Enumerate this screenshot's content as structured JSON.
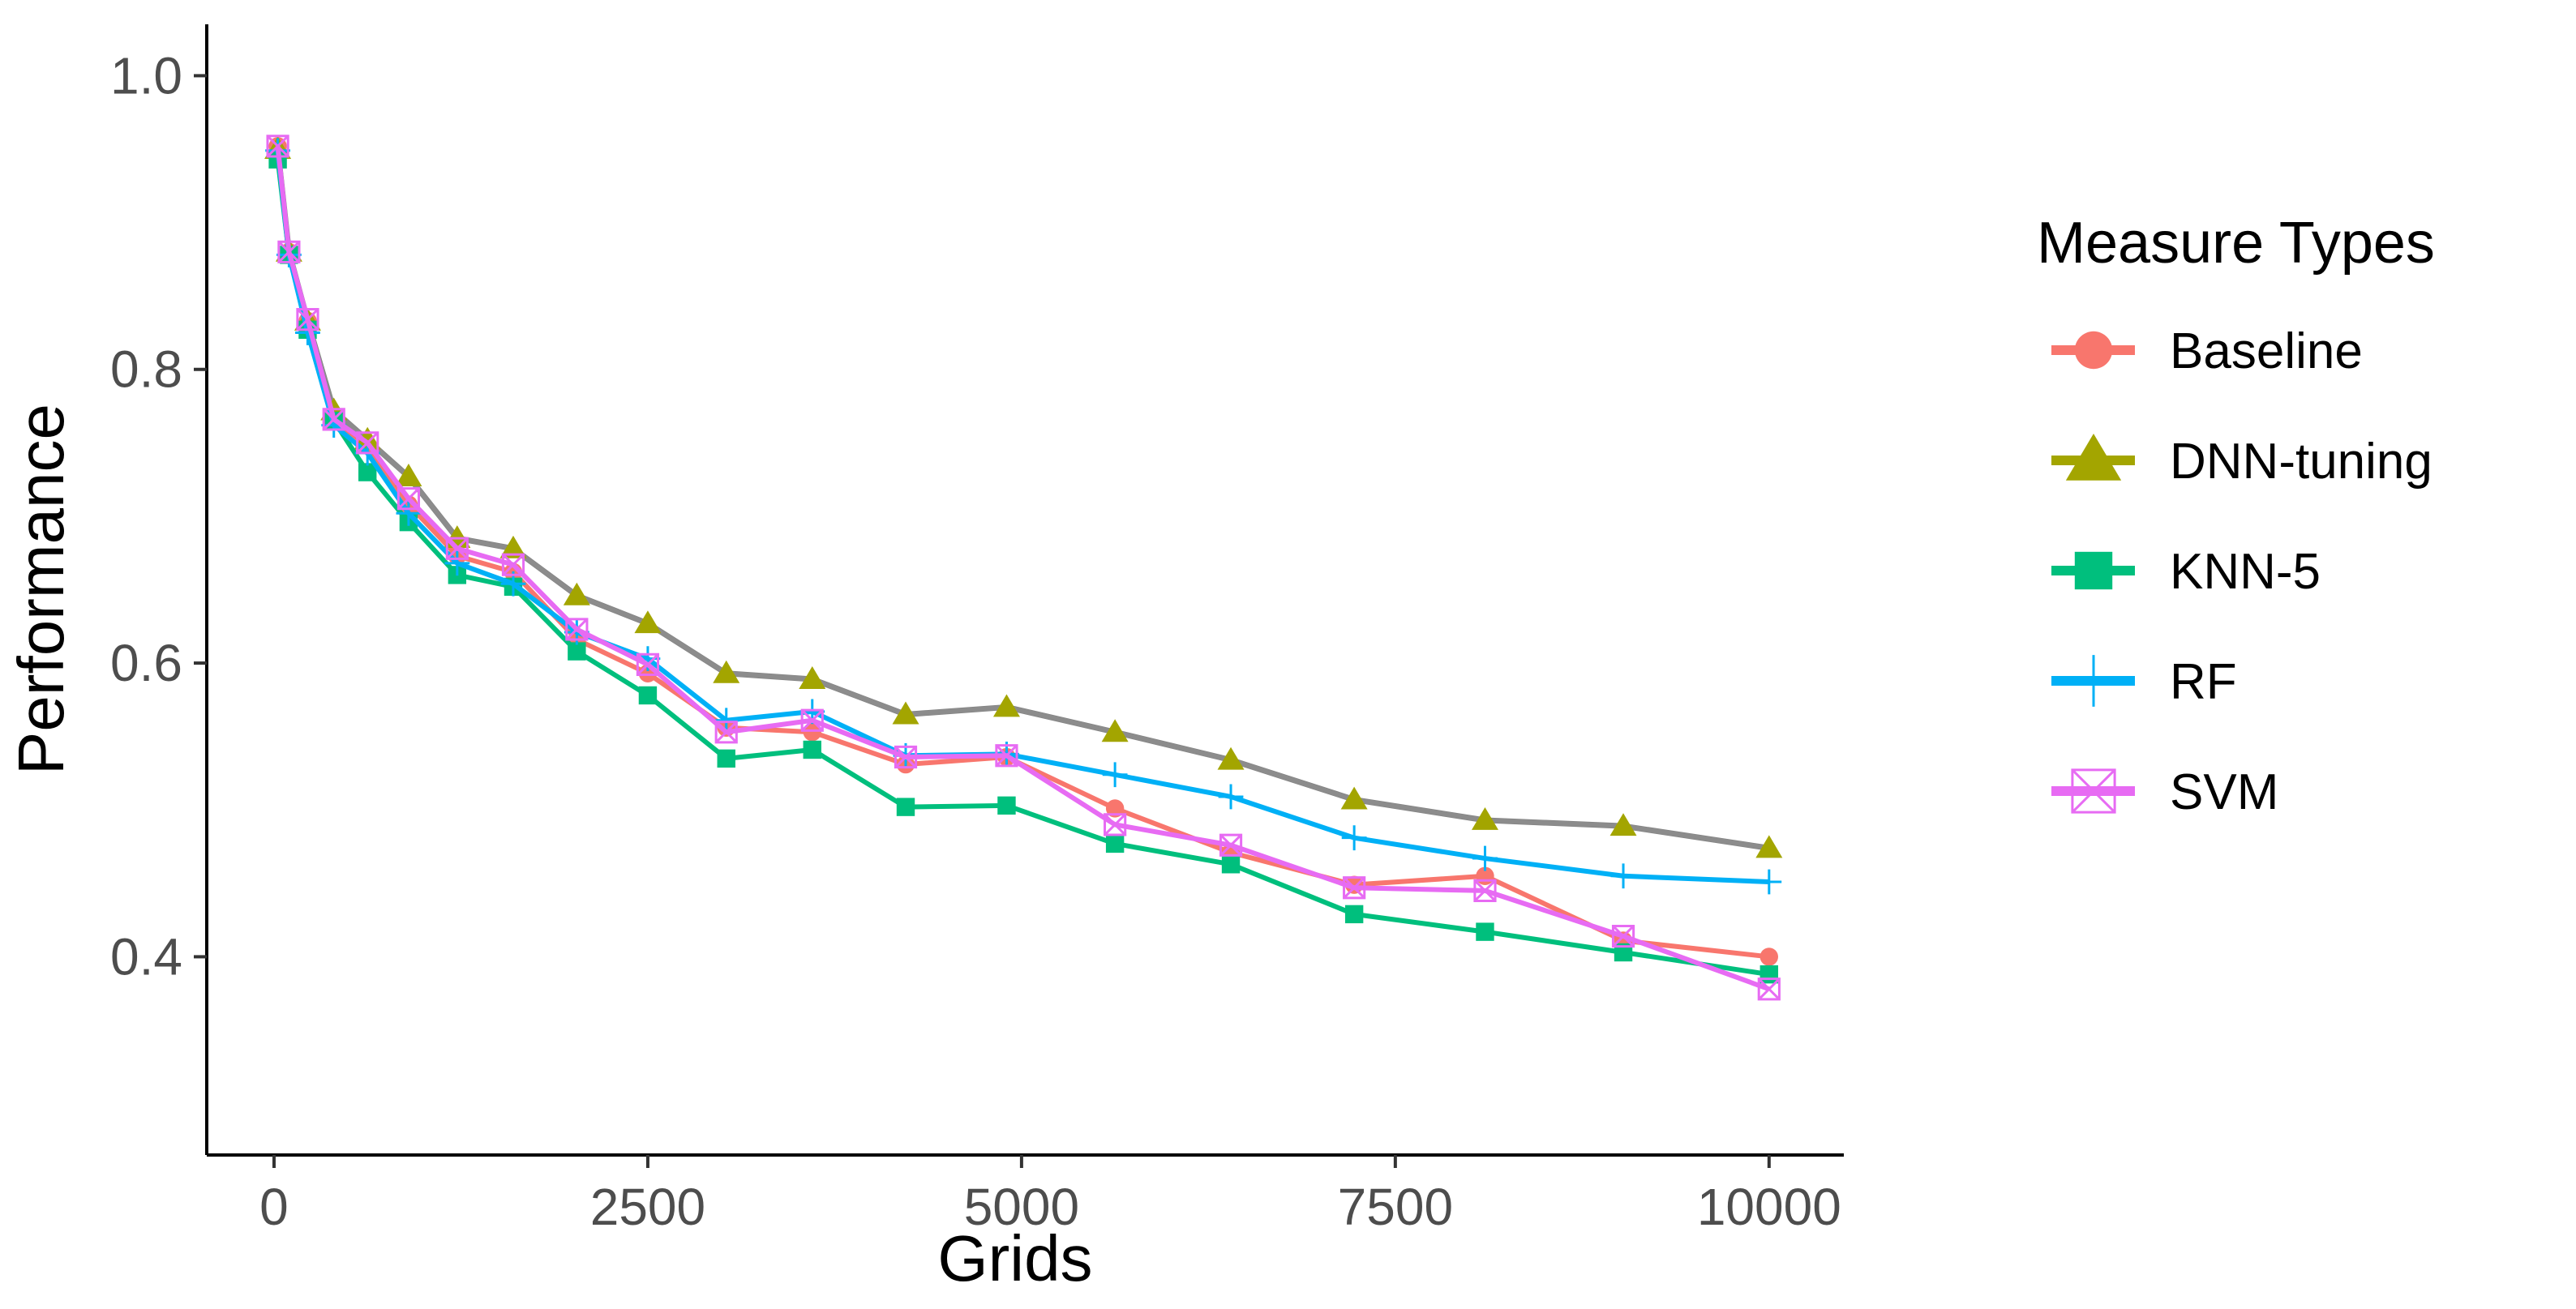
{
  "chart_data": {
    "type": "line",
    "xlabel": "Grids",
    "ylabel": "Performance",
    "xlim": [
      -450,
      10500
    ],
    "ylim": [
      0.265,
      1.035
    ],
    "xticks": [
      0,
      2500,
      5000,
      7500,
      10000
    ],
    "xtick_labels": [
      "0",
      "2500",
      "5000",
      "7500",
      "10000"
    ],
    "yticks": [
      0.4,
      0.6,
      0.8,
      1.0
    ],
    "ytick_labels": [
      "0.4",
      "0.6",
      "0.8",
      "1.0"
    ],
    "grid": false,
    "legend": {
      "title": "Measure Types",
      "placement": "right"
    },
    "x": [
      25,
      100,
      225,
      400,
      625,
      900,
      1225,
      1600,
      2025,
      2500,
      3025,
      3600,
      4225,
      4900,
      5625,
      6400,
      7225,
      8100,
      9025,
      10000
    ],
    "series": [
      {
        "name": "Baseline",
        "color": "#F8766D",
        "marker": "circle",
        "values": [
          0.952,
          0.88,
          0.833,
          0.765,
          0.748,
          0.708,
          0.673,
          0.662,
          0.616,
          0.593,
          0.556,
          0.553,
          0.531,
          0.536,
          0.501,
          0.471,
          0.449,
          0.455,
          0.411,
          0.4
        ]
      },
      {
        "name": "DNN-tuning",
        "color": "#A3A500",
        "marker": "triangle",
        "values": [
          0.95,
          0.88,
          0.833,
          0.772,
          0.752,
          0.727,
          0.685,
          0.678,
          0.646,
          0.627,
          0.593,
          0.589,
          0.565,
          0.57,
          0.553,
          0.534,
          0.507,
          0.493,
          0.489,
          0.474
        ]
      },
      {
        "name": "KNN-5",
        "color": "#00BF7D",
        "marker": "square",
        "values": [
          0.943,
          0.878,
          0.827,
          0.765,
          0.73,
          0.696,
          0.66,
          0.652,
          0.608,
          0.578,
          0.535,
          0.541,
          0.502,
          0.503,
          0.477,
          0.463,
          0.429,
          0.417,
          0.403,
          0.388
        ]
      },
      {
        "name": "RF",
        "color": "#00B0F6",
        "marker": "plus",
        "values": [
          0.949,
          0.878,
          0.825,
          0.762,
          0.743,
          0.702,
          0.668,
          0.654,
          0.621,
          0.603,
          0.561,
          0.567,
          0.537,
          0.538,
          0.524,
          0.509,
          0.481,
          0.467,
          0.455,
          0.451
        ]
      },
      {
        "name": "SVM",
        "color": "#E76BF3",
        "marker": "square-x",
        "values": [
          0.952,
          0.88,
          0.834,
          0.766,
          0.75,
          0.712,
          0.678,
          0.667,
          0.623,
          0.599,
          0.553,
          0.561,
          0.536,
          0.537,
          0.49,
          0.476,
          0.447,
          0.445,
          0.414,
          0.378
        ]
      }
    ]
  }
}
